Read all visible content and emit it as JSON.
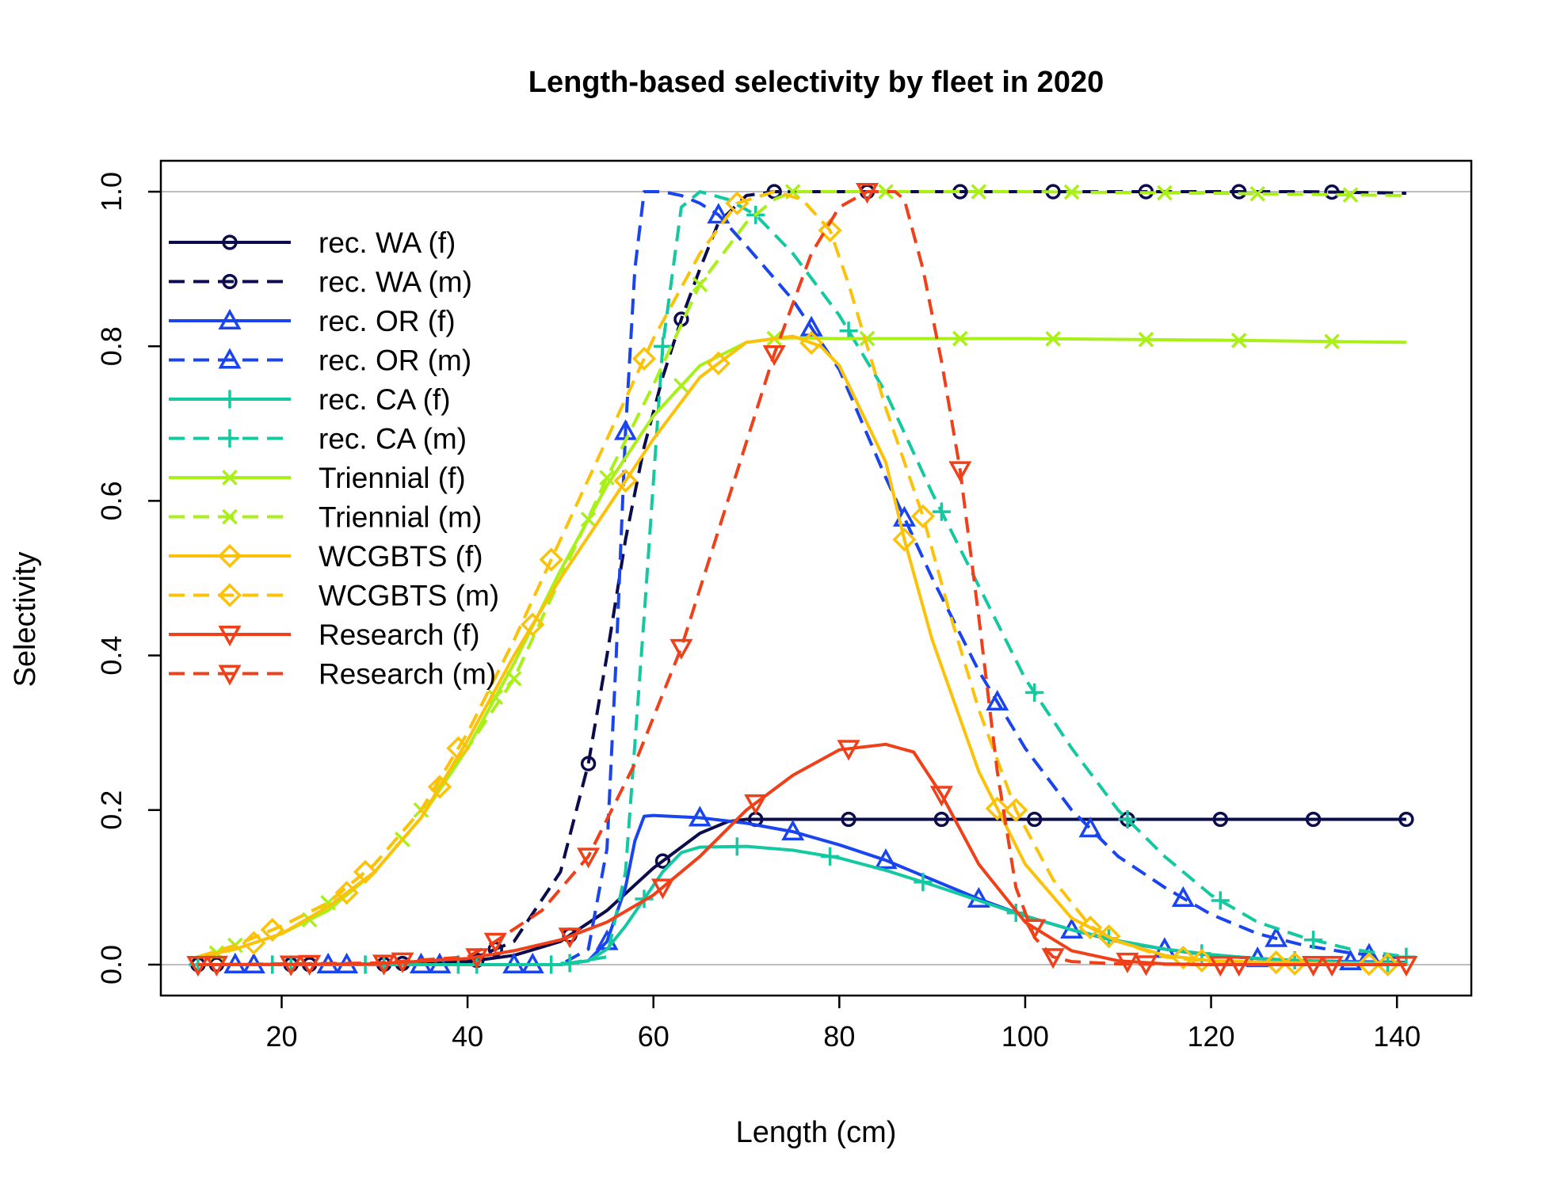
{
  "chart_data": {
    "type": "line",
    "title": "Length-based selectivity by fleet in 2020",
    "xlabel": "Length (cm)",
    "ylabel": "Selectivity",
    "xlim": [
      7,
      148
    ],
    "ylim": [
      -0.04,
      1.04
    ],
    "x_ticks": [
      20,
      40,
      60,
      80,
      100,
      120,
      140
    ],
    "x_tick_labels": [
      "20",
      "40",
      "60",
      "80",
      "100",
      "120",
      "140"
    ],
    "y_ticks": [
      0.0,
      0.2,
      0.4,
      0.6,
      0.8,
      1.0
    ],
    "y_tick_labels": [
      "0.0",
      "0.2",
      "0.4",
      "0.6",
      "0.8",
      "1.0"
    ],
    "reference_lines": [
      0,
      1
    ],
    "grid": false,
    "legend_position": "top-left",
    "series": [
      {
        "name": "rec. WA (f)",
        "color": "#0b0b4e",
        "dash": "solid",
        "marker": "circle",
        "marker_x": [
          11,
          21,
          31,
          41,
          51,
          61,
          71,
          81,
          91,
          101,
          111,
          121,
          131,
          141
        ],
        "x": [
          11,
          30,
          40,
          45,
          50,
          55,
          60,
          65,
          68,
          70,
          73,
          80,
          100,
          120,
          141
        ],
        "y": [
          0.0,
          0.0,
          0.004,
          0.012,
          0.03,
          0.07,
          0.125,
          0.17,
          0.185,
          0.188,
          0.188,
          0.188,
          0.188,
          0.188,
          0.188
        ]
      },
      {
        "name": "rec. WA (m)",
        "color": "#0b0b4e",
        "dash": "dashed",
        "marker": "circle",
        "marker_x": [
          13,
          23,
          33,
          43,
          53,
          63,
          73,
          83,
          93,
          103,
          113,
          123,
          133
        ],
        "x": [
          11,
          30,
          40,
          45,
          50,
          53,
          55,
          57,
          59,
          61,
          63,
          65,
          67,
          70,
          73,
          90,
          110,
          130,
          141
        ],
        "y": [
          0.0,
          0.0,
          0.005,
          0.03,
          0.12,
          0.26,
          0.4,
          0.55,
          0.67,
          0.76,
          0.835,
          0.9,
          0.96,
          0.995,
          1.0,
          1.0,
          1.0,
          1.0,
          0.998
        ]
      },
      {
        "name": "rec. OR (f)",
        "color": "#1a45ee",
        "dash": "solid",
        "marker": "triangle-up",
        "marker_x": [
          15,
          25,
          35,
          45,
          55,
          65,
          75,
          85,
          95,
          105,
          115,
          125,
          135
        ],
        "x": [
          11,
          50,
          53,
          55,
          57,
          58,
          59,
          60,
          65,
          70,
          75,
          80,
          85,
          90,
          95,
          100,
          105,
          110,
          115,
          120,
          125,
          130,
          135,
          141
        ],
        "y": [
          0.0,
          0.0,
          0.005,
          0.03,
          0.1,
          0.16,
          0.192,
          0.193,
          0.19,
          0.183,
          0.172,
          0.155,
          0.135,
          0.11,
          0.085,
          0.063,
          0.045,
          0.03,
          0.02,
          0.012,
          0.008,
          0.005,
          0.004,
          0.003
        ]
      },
      {
        "name": "rec. OR (m)",
        "color": "#1a45ee",
        "dash": "dashed",
        "marker": "triangle-up",
        "marker_x": [
          17,
          27,
          37,
          47,
          57,
          67,
          77,
          87,
          97,
          107,
          117,
          127,
          137
        ],
        "x": [
          11,
          50,
          53,
          55,
          56,
          57,
          58,
          59,
          61,
          63,
          65,
          67,
          70,
          75,
          80,
          85,
          90,
          95,
          100,
          105,
          110,
          115,
          120,
          125,
          130,
          135,
          141
        ],
        "y": [
          0.0,
          0.0,
          0.02,
          0.15,
          0.4,
          0.69,
          0.9,
          1.0,
          1.0,
          0.995,
          0.985,
          0.97,
          0.93,
          0.86,
          0.77,
          0.63,
          0.5,
          0.38,
          0.28,
          0.2,
          0.14,
          0.1,
          0.065,
          0.04,
          0.025,
          0.015,
          0.008
        ]
      },
      {
        "name": "rec. CA (f)",
        "color": "#14c8a0",
        "dash": "solid",
        "marker": "plus",
        "marker_x": [
          19,
          29,
          39,
          49,
          59,
          69,
          79,
          89,
          99,
          109,
          119,
          129,
          139
        ],
        "x": [
          11,
          50,
          53,
          55,
          57,
          59,
          61,
          63,
          65,
          70,
          75,
          80,
          85,
          90,
          95,
          100,
          105,
          110,
          115,
          120,
          125,
          130,
          135,
          141
        ],
        "y": [
          0.0,
          0.0,
          0.005,
          0.02,
          0.05,
          0.085,
          0.12,
          0.145,
          0.152,
          0.153,
          0.148,
          0.138,
          0.122,
          0.103,
          0.083,
          0.063,
          0.045,
          0.031,
          0.02,
          0.013,
          0.008,
          0.005,
          0.003,
          0.002
        ]
      },
      {
        "name": "rec. CA (m)",
        "color": "#14c8a0",
        "dash": "dashed",
        "marker": "plus",
        "marker_x": [
          11,
          21,
          31,
          41,
          51,
          61,
          71,
          81,
          91,
          101,
          111,
          121,
          131,
          141
        ],
        "x": [
          11,
          50,
          55,
          57,
          59,
          61,
          63,
          65,
          68,
          71,
          75,
          80,
          85,
          90,
          95,
          100,
          105,
          110,
          115,
          120,
          125,
          130,
          135,
          141
        ],
        "y": [
          0.0,
          0.0,
          0.01,
          0.12,
          0.45,
          0.8,
          0.98,
          1.0,
          0.99,
          0.97,
          0.92,
          0.84,
          0.74,
          0.61,
          0.49,
          0.37,
          0.28,
          0.2,
          0.14,
          0.09,
          0.055,
          0.035,
          0.02,
          0.01
        ]
      },
      {
        "name": "Triennial (f)",
        "color": "#a8f018",
        "dash": "solid",
        "marker": "cross",
        "marker_x": [
          13,
          23,
          33,
          43,
          53,
          63,
          73,
          83,
          93,
          103,
          113,
          123,
          133
        ],
        "x": [
          11,
          15,
          20,
          25,
          30,
          35,
          40,
          45,
          50,
          55,
          60,
          65,
          70,
          73,
          75,
          80,
          100,
          120,
          141
        ],
        "y": [
          0.01,
          0.02,
          0.04,
          0.07,
          0.12,
          0.19,
          0.28,
          0.39,
          0.51,
          0.62,
          0.71,
          0.775,
          0.805,
          0.81,
          0.811,
          0.81,
          0.81,
          0.808,
          0.805
        ]
      },
      {
        "name": "Triennial (m)",
        "color": "#a8f018",
        "dash": "dashed",
        "marker": "cross",
        "marker_x": [
          15,
          25,
          35,
          45,
          55,
          65,
          75,
          85,
          95,
          105,
          115,
          125,
          135
        ],
        "x": [
          11,
          15,
          20,
          25,
          30,
          35,
          40,
          45,
          50,
          55,
          60,
          65,
          70,
          73,
          75,
          80,
          100,
          120,
          141
        ],
        "y": [
          0.01,
          0.025,
          0.05,
          0.08,
          0.13,
          0.2,
          0.28,
          0.37,
          0.5,
          0.63,
          0.75,
          0.88,
          0.96,
          0.99,
          1.0,
          1.0,
          1.0,
          0.998,
          0.995
        ]
      },
      {
        "name": "WCGBTS (f)",
        "color": "#fcc20a",
        "dash": "solid",
        "marker": "diamond",
        "marker_x": [
          17,
          27,
          37,
          47,
          57,
          67,
          77,
          87,
          97,
          107,
          117,
          127,
          137
        ],
        "x": [
          11,
          15,
          20,
          25,
          30,
          35,
          40,
          45,
          50,
          55,
          60,
          65,
          70,
          75,
          78,
          80,
          85,
          87,
          90,
          95,
          100,
          105,
          110,
          115,
          120,
          130,
          141
        ],
        "y": [
          0.01,
          0.02,
          0.04,
          0.075,
          0.12,
          0.19,
          0.29,
          0.4,
          0.5,
          0.59,
          0.68,
          0.76,
          0.805,
          0.813,
          0.8,
          0.775,
          0.65,
          0.55,
          0.42,
          0.25,
          0.13,
          0.06,
          0.03,
          0.012,
          0.005,
          0.002,
          0.0
        ]
      },
      {
        "name": "WCGBTS (m)",
        "color": "#fcc20a",
        "dash": "dashed",
        "marker": "diamond",
        "marker_x": [
          19,
          29,
          39,
          49,
          59,
          69,
          79,
          89,
          99,
          109,
          119,
          129,
          139
        ],
        "x": [
          11,
          15,
          20,
          25,
          30,
          35,
          40,
          45,
          50,
          55,
          60,
          65,
          69,
          73,
          76,
          79,
          81,
          85,
          89,
          92,
          95,
          99,
          103,
          107,
          110,
          115,
          120,
          130,
          141
        ],
        "y": [
          0.01,
          0.025,
          0.05,
          0.08,
          0.13,
          0.2,
          0.3,
          0.42,
          0.55,
          0.68,
          0.81,
          0.92,
          0.985,
          1.0,
          0.99,
          0.95,
          0.88,
          0.72,
          0.58,
          0.45,
          0.33,
          0.2,
          0.11,
          0.05,
          0.03,
          0.01,
          0.004,
          0.001,
          0.0
        ]
      },
      {
        "name": "Research (f)",
        "color": "#f0401a",
        "dash": "solid",
        "marker": "triangle-down",
        "marker_x": [
          11,
          21,
          31,
          41,
          51,
          61,
          71,
          81,
          91,
          101,
          111,
          121,
          131,
          141
        ],
        "x": [
          11,
          30,
          40,
          45,
          50,
          55,
          60,
          65,
          70,
          75,
          80,
          85,
          88,
          91,
          95,
          100,
          105,
          110,
          115,
          120,
          130,
          141
        ],
        "y": [
          0.0,
          0.001,
          0.008,
          0.018,
          0.032,
          0.055,
          0.09,
          0.14,
          0.2,
          0.245,
          0.278,
          0.285,
          0.275,
          0.22,
          0.13,
          0.055,
          0.018,
          0.005,
          0.001,
          0.0,
          0.0,
          0.0
        ]
      },
      {
        "name": "Research (m)",
        "color": "#f0401a",
        "dash": "dashed",
        "marker": "triangle-down",
        "marker_x": [
          13,
          23,
          33,
          43,
          53,
          63,
          73,
          83,
          93,
          103,
          113,
          123,
          133
        ],
        "x": [
          11,
          30,
          40,
          43,
          48,
          53,
          58,
          63,
          68,
          73,
          77,
          80,
          83,
          86,
          87,
          89,
          91,
          93,
          95,
          97,
          99,
          101,
          103,
          105,
          110,
          120,
          141
        ],
        "y": [
          0.0,
          0.002,
          0.01,
          0.03,
          0.07,
          0.14,
          0.26,
          0.41,
          0.6,
          0.79,
          0.92,
          0.98,
          1.0,
          1.0,
          0.99,
          0.9,
          0.78,
          0.64,
          0.45,
          0.25,
          0.1,
          0.035,
          0.01,
          0.004,
          0.001,
          0.0,
          0.0
        ]
      }
    ]
  }
}
